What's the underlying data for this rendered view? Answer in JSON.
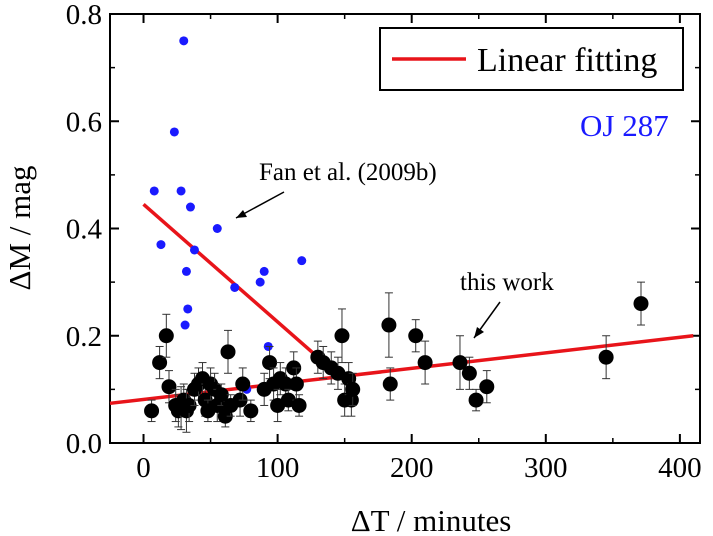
{
  "chart_data": {
    "type": "scatter",
    "xlabel": "ΔT / minutes",
    "ylabel": "ΔM / mag",
    "xlim": [
      -25,
      415
    ],
    "ylim": [
      0,
      0.8
    ],
    "x_ticks": [
      0,
      100,
      200,
      300,
      400
    ],
    "x_tick_labels": [
      "0",
      "100",
      "200",
      "300",
      "400"
    ],
    "y_ticks": [
      0.0,
      0.2,
      0.4,
      0.6,
      0.8
    ],
    "y_tick_labels": [
      "0.0",
      "0.2",
      "0.4",
      "0.6",
      "0.8"
    ],
    "grid": false,
    "legend": {
      "position": "top-right",
      "entries": [
        {
          "label": "Linear fitting",
          "color": "#e8141a",
          "kind": "line"
        }
      ]
    },
    "annotations": [
      {
        "id": "object",
        "text": "OJ 287",
        "color": "#1a1aff"
      },
      {
        "id": "fan",
        "text": "Fan et al. (2009b)",
        "color": "#000000"
      },
      {
        "id": "this",
        "text": "this work",
        "color": "#000000"
      }
    ],
    "series": [
      {
        "name": "Fan et al. (2009b)",
        "color": "#1a1aff",
        "points": [
          [
            8,
            0.47
          ],
          [
            13,
            0.37
          ],
          [
            23,
            0.58
          ],
          [
            28,
            0.47
          ],
          [
            30,
            0.75
          ],
          [
            31,
            0.22
          ],
          [
            32,
            0.32
          ],
          [
            33,
            0.25
          ],
          [
            35,
            0.44
          ],
          [
            38,
            0.36
          ],
          [
            40,
            0.11
          ],
          [
            44,
            0.11
          ],
          [
            55,
            0.4
          ],
          [
            68,
            0.29
          ],
          [
            77,
            0.1
          ],
          [
            87,
            0.3
          ],
          [
            90,
            0.32
          ],
          [
            93,
            0.18
          ],
          [
            118,
            0.34
          ]
        ]
      },
      {
        "name": "this work",
        "color": "#000000",
        "points": [
          [
            6,
            0.06,
            0.02
          ],
          [
            12,
            0.15,
            0.03
          ],
          [
            17,
            0.2,
            0.04
          ],
          [
            19,
            0.105,
            0.03
          ],
          [
            24,
            0.07,
            0.03
          ],
          [
            26,
            0.06,
            0.03
          ],
          [
            28,
            0.065,
            0.04
          ],
          [
            30,
            0.08,
            0.03
          ],
          [
            32,
            0.06,
            0.04
          ],
          [
            34,
            0.07,
            0.03
          ],
          [
            38,
            0.1,
            0.03
          ],
          [
            41,
            0.11,
            0.03
          ],
          [
            44,
            0.12,
            0.03
          ],
          [
            46,
            0.08,
            0.03
          ],
          [
            48,
            0.06,
            0.02
          ],
          [
            50,
            0.11,
            0.03
          ],
          [
            53,
            0.1,
            0.03
          ],
          [
            55,
            0.07,
            0.03
          ],
          [
            58,
            0.09,
            0.02
          ],
          [
            61,
            0.05,
            0.02
          ],
          [
            63,
            0.17,
            0.04
          ],
          [
            65,
            0.07,
            0.02
          ],
          [
            72,
            0.08,
            0.03
          ],
          [
            74,
            0.11,
            0.03
          ],
          [
            80,
            0.06,
            0.02
          ],
          [
            90,
            0.1,
            0.03
          ],
          [
            94,
            0.15,
            0.03
          ],
          [
            97,
            0.11,
            0.03
          ],
          [
            100,
            0.07,
            0.03
          ],
          [
            102,
            0.12,
            0.03
          ],
          [
            106,
            0.11,
            0.03
          ],
          [
            108,
            0.08,
            0.02
          ],
          [
            112,
            0.14,
            0.03
          ],
          [
            114,
            0.11,
            0.03
          ],
          [
            116,
            0.07,
            0.02
          ],
          [
            130,
            0.16,
            0.03
          ],
          [
            134,
            0.15,
            0.03
          ],
          [
            140,
            0.14,
            0.03
          ],
          [
            145,
            0.13,
            0.03
          ],
          [
            148,
            0.2,
            0.05
          ],
          [
            150,
            0.08,
            0.03
          ],
          [
            153,
            0.12,
            0.03
          ],
          [
            155,
            0.08,
            0.03
          ],
          [
            156,
            0.1,
            0.03
          ],
          [
            183,
            0.22,
            0.06
          ],
          [
            184,
            0.11,
            0.03
          ],
          [
            203,
            0.2,
            0.03
          ],
          [
            210,
            0.15,
            0.04
          ],
          [
            236,
            0.15,
            0.05
          ],
          [
            243,
            0.13,
            0.03
          ],
          [
            248,
            0.08,
            0.02
          ],
          [
            256,
            0.105,
            0.03
          ],
          [
            345,
            0.16,
            0.04
          ],
          [
            371,
            0.26,
            0.04
          ]
        ]
      }
    ],
    "fit_lines": [
      {
        "name": "Fan et al. (2009b) fit",
        "color": "#e8141a",
        "x": [
          0,
          130
        ],
        "y": [
          0.445,
          0.16
        ]
      },
      {
        "name": "this work fit",
        "color": "#e8141a",
        "x": [
          -25,
          410
        ],
        "y": [
          0.074,
          0.2
        ]
      }
    ]
  }
}
